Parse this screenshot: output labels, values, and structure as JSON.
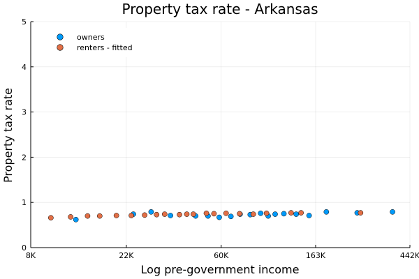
{
  "chart_data": {
    "type": "scatter",
    "title": "Property tax rate - Arkansas",
    "xlabel": "Log pre-government income",
    "ylabel": "Property tax rate",
    "x_scale": "log",
    "xlim": [
      8000,
      442000
    ],
    "ylim": [
      0,
      5
    ],
    "x_ticks": [
      {
        "value": 8000,
        "label": "8K"
      },
      {
        "value": 22000,
        "label": "22K"
      },
      {
        "value": 60000,
        "label": "60K"
      },
      {
        "value": 163000,
        "label": "163K"
      },
      {
        "value": 442000,
        "label": "442K"
      }
    ],
    "y_ticks": [
      {
        "value": 0,
        "label": "0"
      },
      {
        "value": 1,
        "label": "1"
      },
      {
        "value": 2,
        "label": "2"
      },
      {
        "value": 3,
        "label": "3"
      },
      {
        "value": 4,
        "label": "4"
      },
      {
        "value": 5,
        "label": "5"
      }
    ],
    "grid": true,
    "legend_position": "top-left",
    "series": [
      {
        "name": "owners",
        "color": "#009AFA",
        "points": [
          {
            "x": 12900,
            "y": 0.62
          },
          {
            "x": 23700,
            "y": 0.74
          },
          {
            "x": 28600,
            "y": 0.79
          },
          {
            "x": 35100,
            "y": 0.71
          },
          {
            "x": 45800,
            "y": 0.7
          },
          {
            "x": 52200,
            "y": 0.7
          },
          {
            "x": 58800,
            "y": 0.67
          },
          {
            "x": 66500,
            "y": 0.69
          },
          {
            "x": 73300,
            "y": 0.74
          },
          {
            "x": 81600,
            "y": 0.73
          },
          {
            "x": 91100,
            "y": 0.76
          },
          {
            "x": 98700,
            "y": 0.7
          },
          {
            "x": 106200,
            "y": 0.74
          },
          {
            "x": 116500,
            "y": 0.75
          },
          {
            "x": 132700,
            "y": 0.74
          },
          {
            "x": 152100,
            "y": 0.71
          },
          {
            "x": 182600,
            "y": 0.79
          },
          {
            "x": 253000,
            "y": 0.77
          },
          {
            "x": 367600,
            "y": 0.79
          }
        ]
      },
      {
        "name": "renters - fitted",
        "color": "#E26F46",
        "points": [
          {
            "x": 9900,
            "y": 0.66
          },
          {
            "x": 12200,
            "y": 0.68
          },
          {
            "x": 14600,
            "y": 0.7
          },
          {
            "x": 16600,
            "y": 0.7
          },
          {
            "x": 19800,
            "y": 0.71
          },
          {
            "x": 23200,
            "y": 0.71
          },
          {
            "x": 26700,
            "y": 0.72
          },
          {
            "x": 30300,
            "y": 0.73
          },
          {
            "x": 33000,
            "y": 0.74
          },
          {
            "x": 38600,
            "y": 0.73
          },
          {
            "x": 41700,
            "y": 0.74
          },
          {
            "x": 44700,
            "y": 0.74
          },
          {
            "x": 51300,
            "y": 0.76
          },
          {
            "x": 55600,
            "y": 0.75
          },
          {
            "x": 63200,
            "y": 0.76
          },
          {
            "x": 72900,
            "y": 0.75
          },
          {
            "x": 84300,
            "y": 0.74
          },
          {
            "x": 96900,
            "y": 0.76
          },
          {
            "x": 125700,
            "y": 0.77
          },
          {
            "x": 139700,
            "y": 0.77
          },
          {
            "x": 262200,
            "y": 0.77
          }
        ]
      }
    ]
  }
}
